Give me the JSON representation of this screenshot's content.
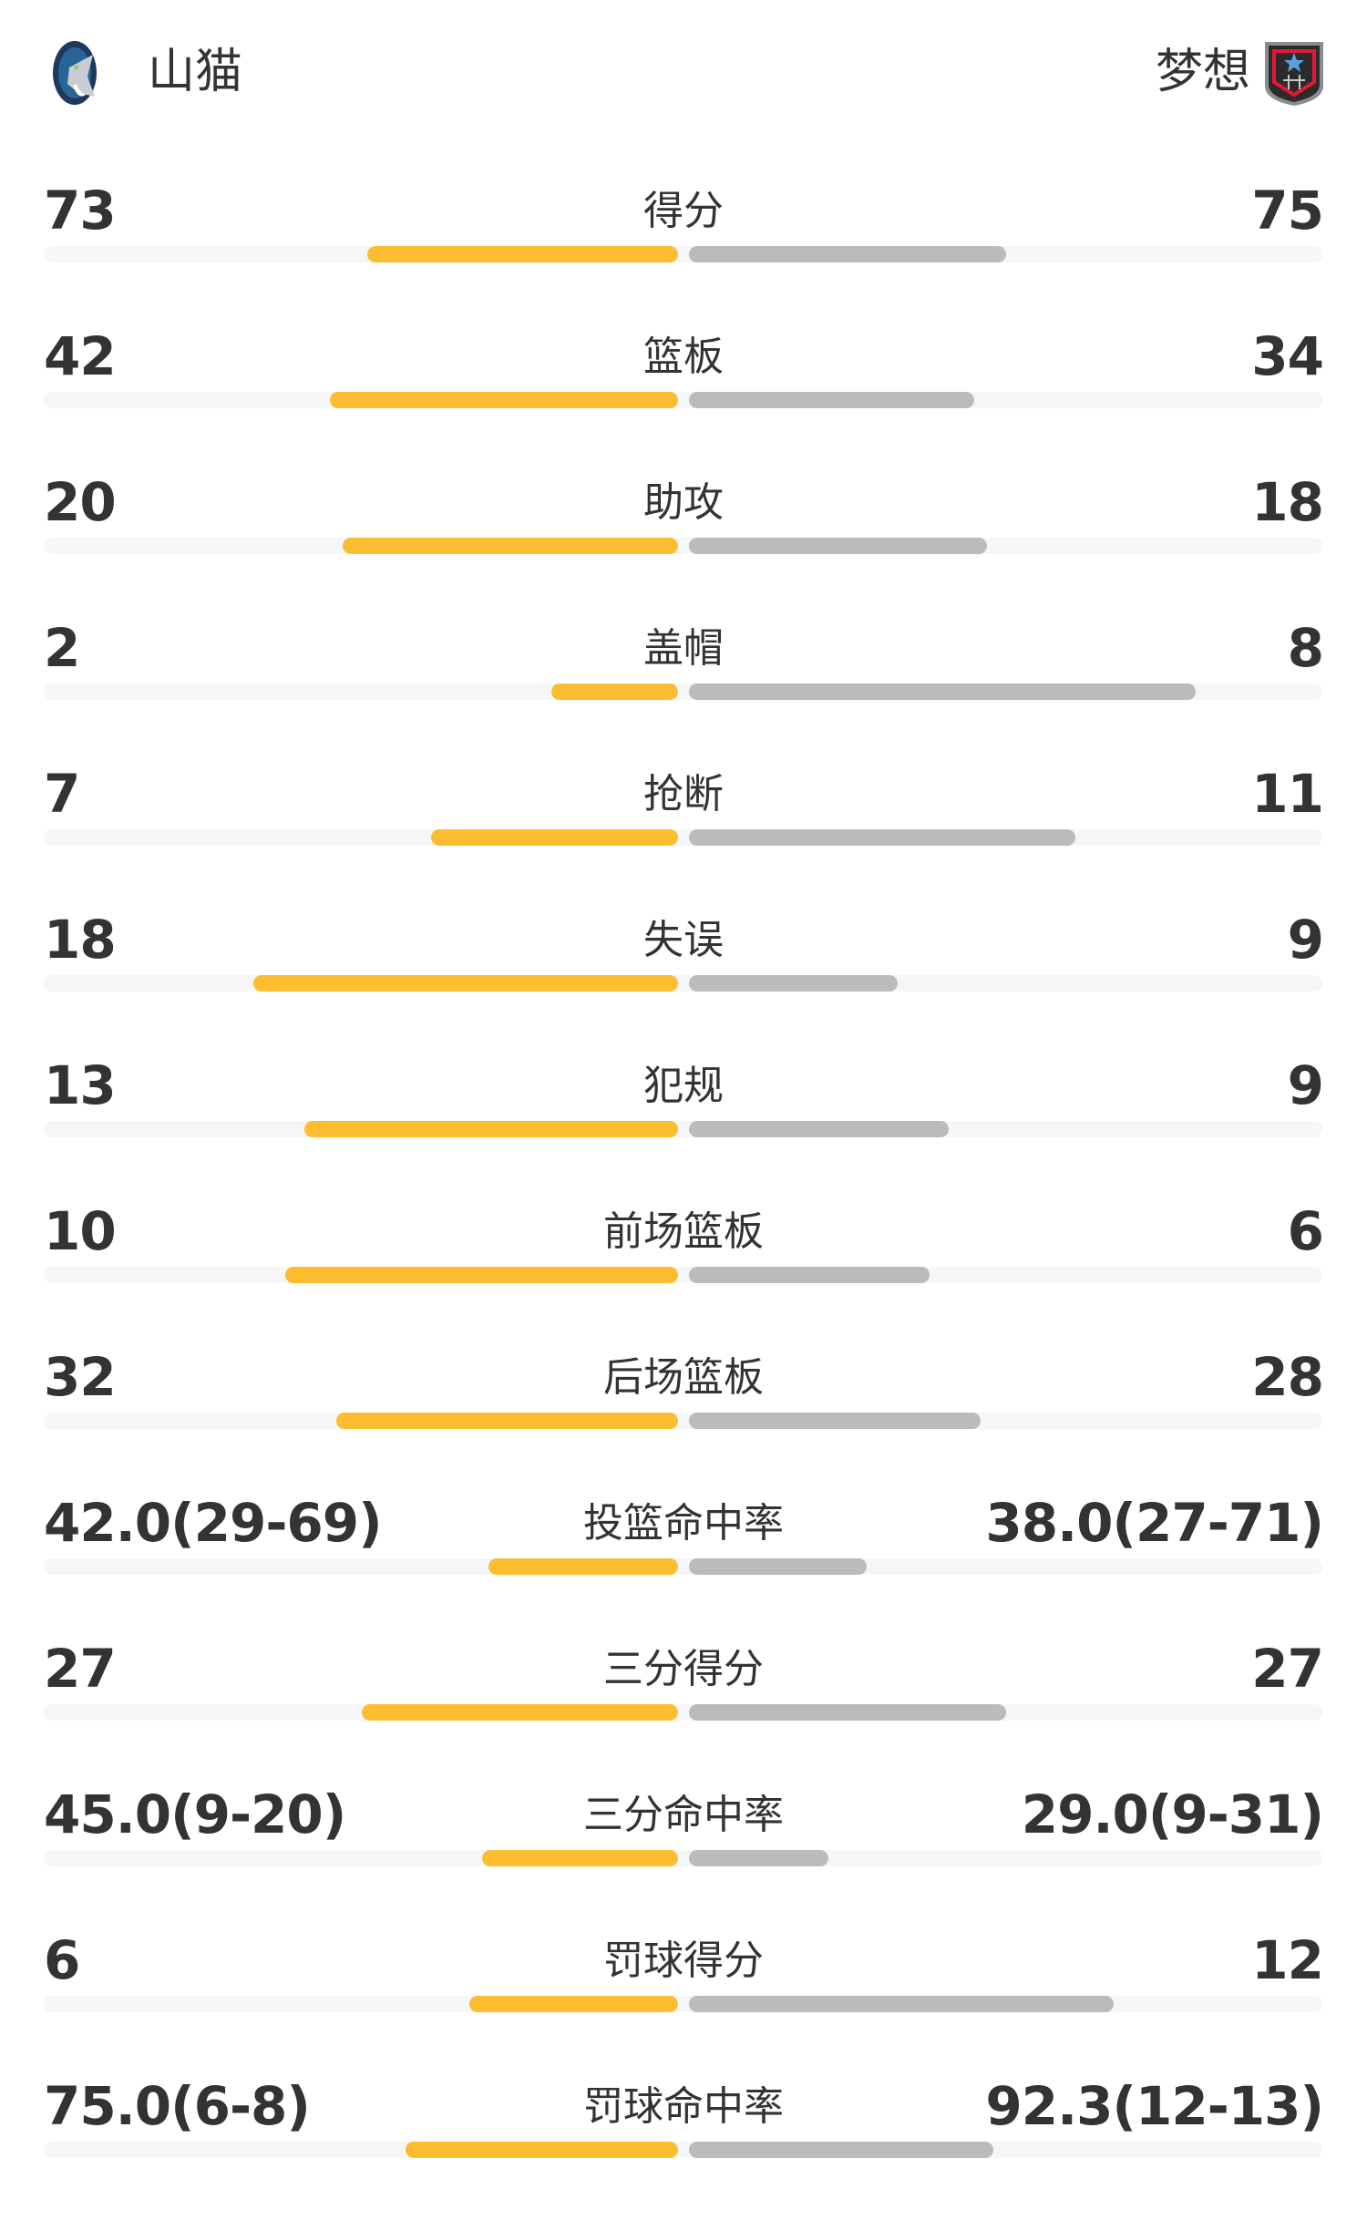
{
  "header": {
    "home_team": "山猫",
    "away_team": "梦想",
    "home_logo_icon": "minnesota-lynx-logo",
    "away_logo_icon": "atlanta-dream-logo"
  },
  "colors": {
    "home_bar": "#fcbd30",
    "away_bar": "#bbbbbb",
    "track": "#f5f6f8"
  },
  "stats": [
    {
      "label": "得分",
      "home": "73",
      "away": "75",
      "home_fill": 0.49,
      "away_fill": 0.5
    },
    {
      "label": "篮板",
      "home": "42",
      "away": "34",
      "home_fill": 0.55,
      "away_fill": 0.45
    },
    {
      "label": "助攻",
      "home": "20",
      "away": "18",
      "home_fill": 0.53,
      "away_fill": 0.47
    },
    {
      "label": "盖帽",
      "home": "2",
      "away": "8",
      "home_fill": 0.2,
      "away_fill": 0.8
    },
    {
      "label": "抢断",
      "home": "7",
      "away": "11",
      "home_fill": 0.39,
      "away_fill": 0.61
    },
    {
      "label": "失误",
      "home": "18",
      "away": "9",
      "home_fill": 0.67,
      "away_fill": 0.33
    },
    {
      "label": "犯规",
      "home": "13",
      "away": "9",
      "home_fill": 0.59,
      "away_fill": 0.41
    },
    {
      "label": "前场篮板",
      "home": "10",
      "away": "6",
      "home_fill": 0.62,
      "away_fill": 0.38
    },
    {
      "label": "后场篮板",
      "home": "32",
      "away": "28",
      "home_fill": 0.54,
      "away_fill": 0.46
    },
    {
      "label": "投篮命中率",
      "home": "42.0(29-69)",
      "away": "38.0(27-71)",
      "home_fill": 0.3,
      "away_fill": 0.28
    },
    {
      "label": "三分得分",
      "home": "27",
      "away": "27",
      "home_fill": 0.5,
      "away_fill": 0.5
    },
    {
      "label": "三分命中率",
      "home": "45.0(9-20)",
      "away": "29.0(9-31)",
      "home_fill": 0.31,
      "away_fill": 0.22
    },
    {
      "label": "罚球得分",
      "home": "6",
      "away": "12",
      "home_fill": 0.33,
      "away_fill": 0.67
    },
    {
      "label": "罚球命中率",
      "home": "75.0(6-8)",
      "away": "92.3(12-13)",
      "home_fill": 0.43,
      "away_fill": 0.48
    }
  ]
}
